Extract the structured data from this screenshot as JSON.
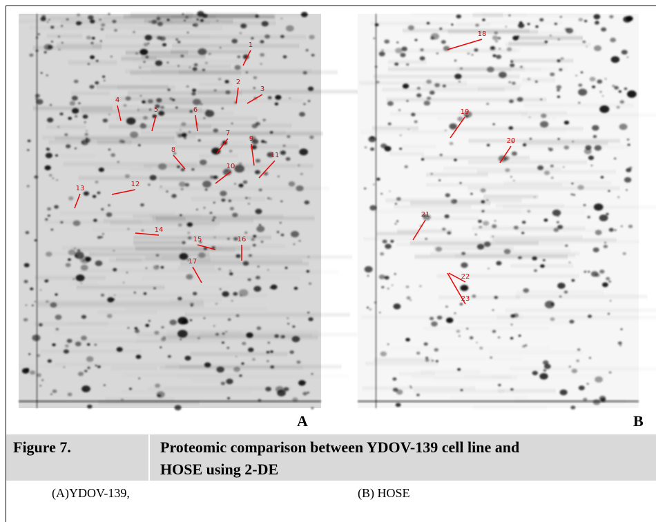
{
  "panels": [
    {
      "label": "A",
      "spots": [
        "1",
        "2",
        "3",
        "4",
        "5",
        "6",
        "7",
        "8",
        "9",
        "10",
        "11",
        "12",
        "13",
        "14",
        "15",
        "16",
        "17"
      ]
    },
    {
      "label": "B",
      "spots": [
        "18",
        "19",
        "20",
        "21",
        "22",
        "23"
      ]
    }
  ],
  "caption": {
    "figure": "Figure 7.",
    "title_lines": [
      "Proteomic comparison between YDOV-139 cell line and",
      "HOSE using 2-DE"
    ]
  },
  "legend": [
    "(A)YDOV-139,",
    "(B) HOSE"
  ]
}
